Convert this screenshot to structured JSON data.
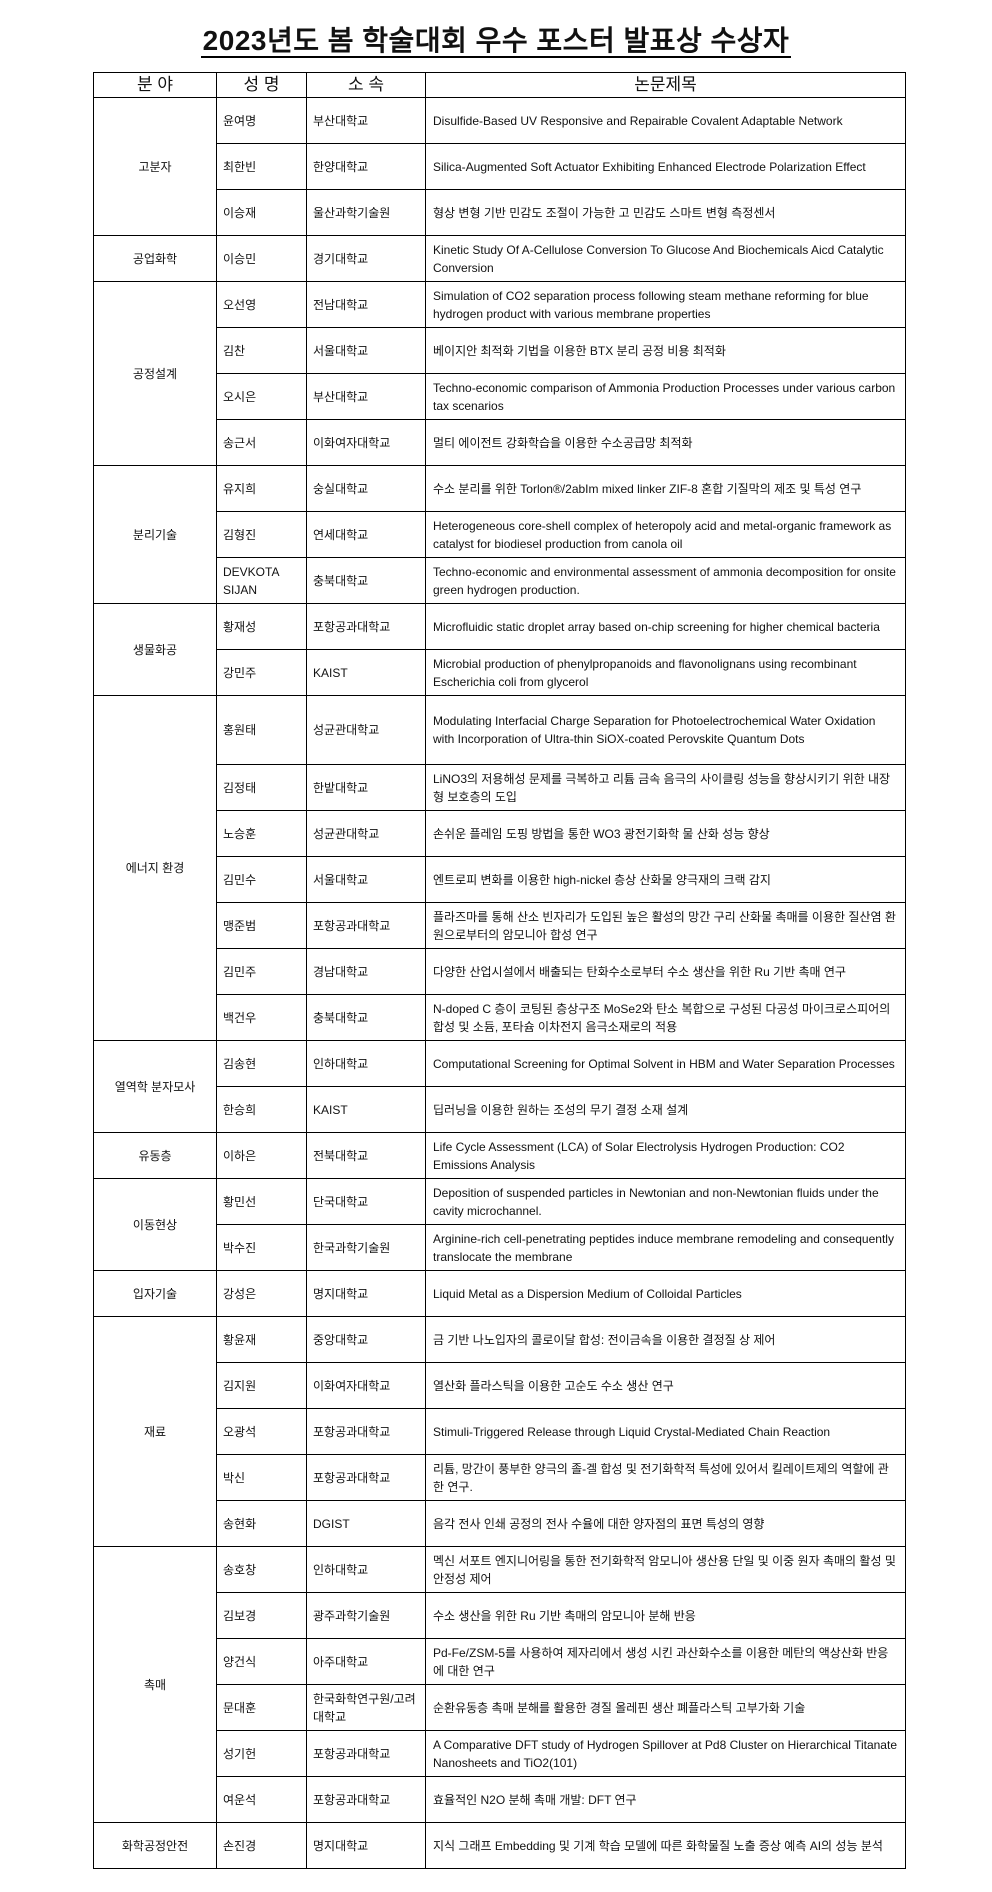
{
  "title": "2023년도 봄 학술대회 우수 포스터 발표상 수상자",
  "headers": [
    "분 야",
    "성 명",
    "소 속",
    "논문제목"
  ],
  "sections": [
    {
      "field": "고분자",
      "rows": [
        {
          "name": "윤여명",
          "affiliation": "부산대학교",
          "paper": "Disulfide-Based UV Responsive and Repairable Covalent Adaptable Network"
        },
        {
          "name": "최한빈",
          "affiliation": "한양대학교",
          "paper": "Silica-Augmented Soft Actuator Exhibiting Enhanced Electrode Polarization Effect"
        },
        {
          "name": "이승재",
          "affiliation": "울산과학기술원",
          "paper": "형상 변형 기반 민감도 조절이 가능한 고 민감도 스마트 변형 측정센서"
        }
      ]
    },
    {
      "field": "공업화학",
      "rows": [
        {
          "name": "이승민",
          "affiliation": "경기대학교",
          "paper": "Kinetic Study Of A-Cellulose Conversion To Glucose And Biochemicals Aicd Catalytic Conversion"
        }
      ]
    },
    {
      "field": "공정설계",
      "rows": [
        {
          "name": "오선영",
          "affiliation": "전남대학교",
          "paper": "Simulation of CO2 separation process following steam methane reforming for blue hydrogen product with various membrane properties"
        },
        {
          "name": "김찬",
          "affiliation": "서울대학교",
          "paper": "베이지안 최적화 기법을 이용한 BTX 분리 공정 비용 최적화"
        },
        {
          "name": "오시은",
          "affiliation": "부산대학교",
          "paper": "Techno-economic comparison of Ammonia Production Processes under various carbon tax scenarios"
        },
        {
          "name": "송근서",
          "affiliation": "이화여자대학교",
          "paper": "멀티 에이전트 강화학습을 이용한 수소공급망 최적화"
        }
      ]
    },
    {
      "field": "분리기술",
      "rows": [
        {
          "name": "유지희",
          "affiliation": "숭실대학교",
          "paper": "수소 분리를 위한 Torlon®/2abIm mixed linker ZIF-8 혼합 기질막의 제조 및 특성 연구"
        },
        {
          "name": "김형진",
          "affiliation": "연세대학교",
          "paper": "Heterogeneous core-shell complex of heteropoly acid and metal-organic framework as catalyst for biodiesel production from canola oil"
        },
        {
          "name": "DEVKOTA SIJAN",
          "affiliation": "충북대학교",
          "paper": "Techno-economic and environmental assessment of ammonia decomposition for onsite green hydrogen production."
        }
      ]
    },
    {
      "field": "생물화공",
      "rows": [
        {
          "name": "황재성",
          "affiliation": "포항공과대학교",
          "paper": "Microfluidic static droplet array based on-chip screening for higher chemical bacteria"
        },
        {
          "name": "강민주",
          "affiliation": "KAIST",
          "paper": "Microbial production of phenylpropanoids and flavonolignans using recombinant Escherichia coli from glycerol"
        }
      ]
    },
    {
      "field": "에너지 환경",
      "rows": [
        {
          "name": "홍원태",
          "affiliation": "성균관대학교",
          "paper": "Modulating Interfacial Charge Separation for Photoelectrochemical Water Oxidation with Incorporation of Ultra-thin SiOX-coated Perovskite Quantum Dots"
        },
        {
          "name": "김정태",
          "affiliation": "한밭대학교",
          "paper": "LiNO3의 저용해성 문제를 극복하고 리튬 금속 음극의 사이클링 성능을 향상시키기 위한 내장형 보호층의 도입"
        },
        {
          "name": "노승훈",
          "affiliation": "성균관대학교",
          "paper": "손쉬운 플레임 도핑 방법을 통한 WO3 광전기화학 물 산화 성능 향상"
        },
        {
          "name": "김민수",
          "affiliation": "서울대학교",
          "paper": "엔트로피 변화를 이용한 high-nickel 층상 산화물 양극재의 크랙 감지"
        },
        {
          "name": "맹준범",
          "affiliation": "포항공과대학교",
          "paper": "플라즈마를 통해 산소 빈자리가 도입된 높은 활성의 망간 구리 산화물 촉매를 이용한 질산염 환원으로부터의 암모니아 합성 연구"
        },
        {
          "name": "김민주",
          "affiliation": "경남대학교",
          "paper": "다양한 산업시설에서 배출되는 탄화수소로부터 수소 생산을 위한 Ru 기반 촉매 연구"
        },
        {
          "name": "백건우",
          "affiliation": "충북대학교",
          "paper": "N-doped C 층이 코팅된 층상구조 MoSe2와 탄소 복합으로 구성된 다공성 마이크로스피어의 합성 및 소듐, 포타슘 이차전지 음극소재로의 적용"
        }
      ]
    },
    {
      "field": "열역학 분자모사",
      "rows": [
        {
          "name": "김송현",
          "affiliation": "인하대학교",
          "paper": "Computational Screening for Optimal Solvent in HBM and Water Separation Processes"
        },
        {
          "name": "한승희",
          "affiliation": "KAIST",
          "paper": "딥러닝을 이용한 원하는 조성의 무기 결정 소재 설계"
        }
      ]
    },
    {
      "field": "유동층",
      "rows": [
        {
          "name": "이하은",
          "affiliation": "전북대학교",
          "paper": "Life Cycle Assessment (LCA) of Solar Electrolysis Hydrogen Production: CO2 Emissions Analysis"
        }
      ]
    },
    {
      "field": "이동현상",
      "rows": [
        {
          "name": "황민선",
          "affiliation": "단국대학교",
          "paper": "Deposition of suspended particles in Newtonian and non-Newtonian fluids under the cavity microchannel."
        },
        {
          "name": "박수진",
          "affiliation": "한국과학기술원",
          "paper": "Arginine-rich cell-penetrating peptides induce membrane remodeling and consequently translocate the membrane"
        }
      ]
    },
    {
      "field": "입자기술",
      "rows": [
        {
          "name": "강성은",
          "affiliation": "명지대학교",
          "paper": "Liquid Metal as a Dispersion Medium of Colloidal Particles"
        }
      ]
    },
    {
      "field": "재료",
      "rows": [
        {
          "name": "황윤재",
          "affiliation": "중앙대학교",
          "paper": "금 기반 나노입자의 콜로이달 합성: 전이금속을 이용한 결정질 상 제어"
        },
        {
          "name": "김지원",
          "affiliation": "이화여자대학교",
          "paper": "열산화 플라스틱을 이용한 고순도 수소 생산 연구"
        },
        {
          "name": "오광석",
          "affiliation": "포항공과대학교",
          "paper": "Stimuli-Triggered Release through Liquid Crystal-Mediated Chain Reaction"
        },
        {
          "name": "박신",
          "affiliation": "포항공과대학교",
          "paper": "리튬, 망간이 풍부한 양극의 졸-겔 합성 및 전기화학적 특성에 있어서 킬레이트제의 역할에 관한 연구."
        },
        {
          "name": "송현화",
          "affiliation": "DGIST",
          "paper": "음각 전사 인쇄 공정의 전사 수율에 대한 양자점의 표면 특성의 영향"
        }
      ]
    },
    {
      "field": "촉매",
      "rows": [
        {
          "name": "송호창",
          "affiliation": "인하대학교",
          "paper": "멕신 서포트 엔지니어링을 통한 전기화학적 암모니아 생산용 단일 및 이중 원자 촉매의 활성 및 안정성 제어"
        },
        {
          "name": "김보경",
          "affiliation": "광주과학기술원",
          "paper": "수소 생산을 위한 Ru 기반 촉매의 암모니아 분해 반응"
        },
        {
          "name": "양건식",
          "affiliation": "아주대학교",
          "paper": "Pd-Fe/ZSM-5를 사용하여 제자리에서 생성 시킨 과산화수소를 이용한 메탄의 액상산화 반응에 대한 연구"
        },
        {
          "name": "문대훈",
          "affiliation": "한국화학연구원/고려대학교",
          "paper": "순환유동층 촉매 분해를 활용한 경질 올레핀 생산 폐플라스틱 고부가화 기술"
        },
        {
          "name": "성기헌",
          "affiliation": "포항공과대학교",
          "paper": "A Comparative DFT study of Hydrogen Spillover at Pd8 Cluster on Hierarchical Titanate Nanosheets and TiO2(101)"
        },
        {
          "name": "여운석",
          "affiliation": "포항공과대학교",
          "paper": "효율적인 N2O 분해 촉매 개발: DFT 연구"
        }
      ]
    },
    {
      "field": "화학공정안전",
      "rows": [
        {
          "name": "손진경",
          "affiliation": "명지대학교",
          "paper": "지식 그래프 Embedding 및 기계 학습 모델에 따른 화학물질 노출 증상 예측 AI의 성능 분석"
        }
      ]
    }
  ]
}
